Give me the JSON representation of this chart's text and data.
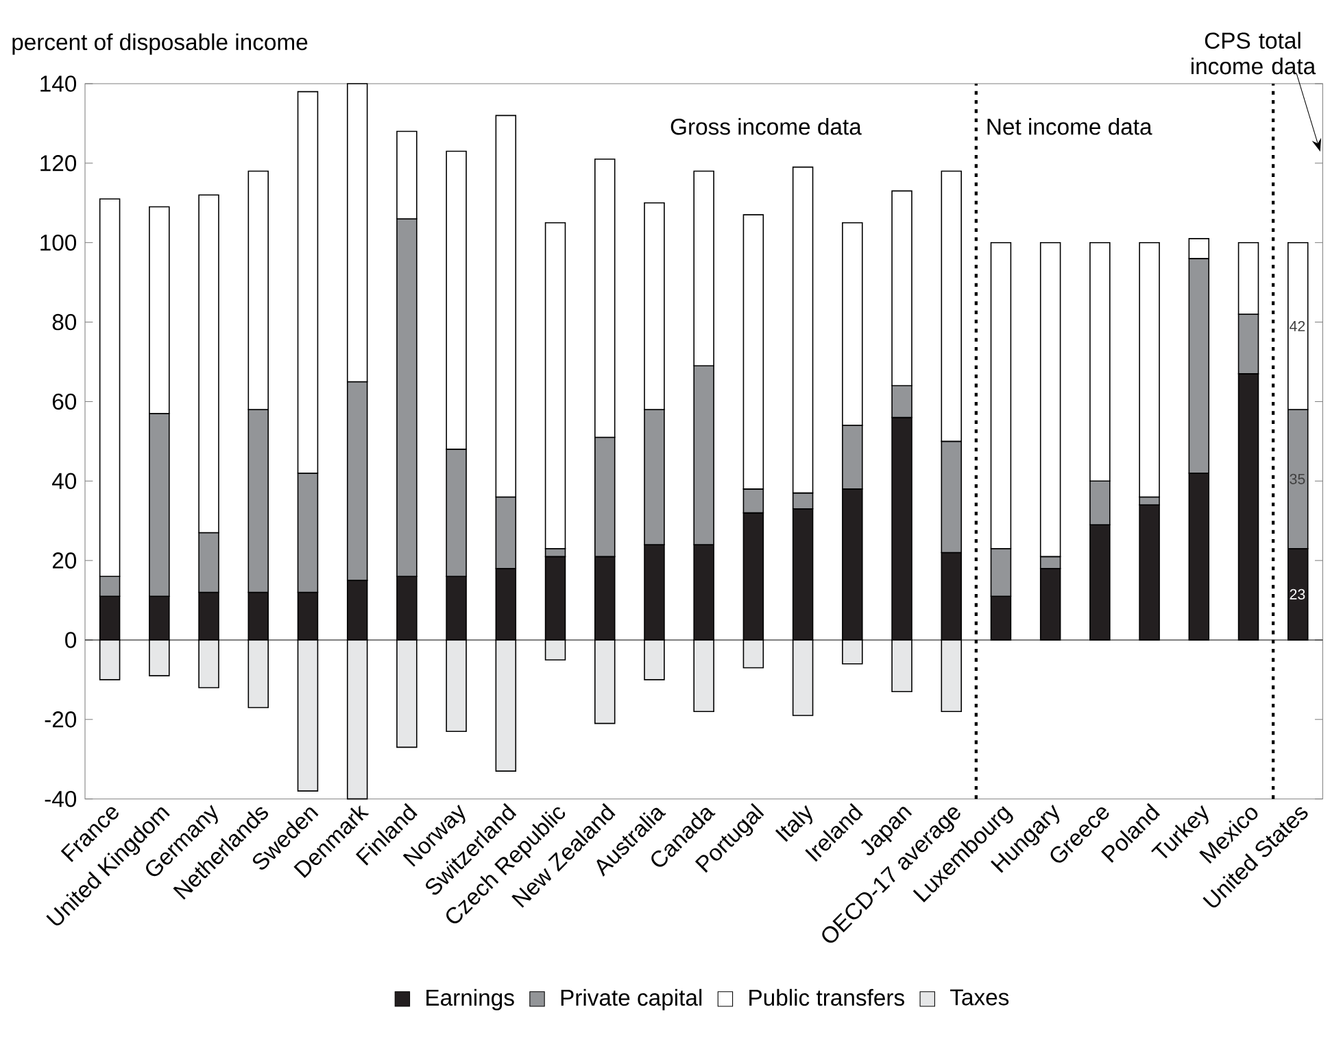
{
  "chart_data": {
    "type": "bar",
    "stacked": true,
    "ylabel": "percent of disposable income",
    "categories": [
      "France",
      "United Kingdom",
      "Germany",
      "Netherlands",
      "Sweden",
      "Denmark",
      "Finland",
      "Norway",
      "Switzerland",
      "Czech Republic",
      "New Zealand",
      "Australia",
      "Canada",
      "Portugal",
      "Italy",
      "Ireland",
      "Japan",
      "OECD-17 average",
      "Luxembourg",
      "Hungary",
      "Greece",
      "Poland",
      "Turkey",
      "Mexico",
      "United States"
    ],
    "series": [
      {
        "name": "Earnings",
        "color": "#231f20",
        "values": [
          11,
          11,
          12,
          12,
          12,
          15,
          16,
          16,
          18,
          21,
          21,
          24,
          24,
          32,
          33,
          38,
          56,
          22,
          11,
          18,
          29,
          34,
          42,
          67,
          23
        ],
        "value_labels": [
          null,
          null,
          null,
          null,
          null,
          null,
          null,
          null,
          null,
          null,
          null,
          null,
          null,
          null,
          null,
          null,
          null,
          null,
          null,
          null,
          null,
          null,
          null,
          null,
          "23"
        ]
      },
      {
        "name": "Private capital",
        "color": "#939598",
        "values": [
          5,
          46,
          15,
          46,
          30,
          50,
          90,
          32,
          18,
          2,
          30,
          34,
          45,
          6,
          4,
          16,
          8,
          28,
          12,
          3,
          11,
          2,
          54,
          15,
          35
        ],
        "value_labels": [
          null,
          null,
          null,
          null,
          null,
          null,
          null,
          null,
          null,
          null,
          null,
          null,
          null,
          null,
          null,
          null,
          null,
          null,
          null,
          null,
          null,
          null,
          null,
          null,
          "35"
        ]
      },
      {
        "name": "Public transfers",
        "color": "#ffffff",
        "values": [
          95,
          52,
          85,
          60,
          96,
          75,
          22,
          75,
          96,
          82,
          70,
          52,
          49,
          69,
          82,
          51,
          49,
          68,
          77,
          79,
          60,
          64,
          5,
          18,
          42
        ],
        "value_labels": [
          null,
          null,
          null,
          null,
          null,
          null,
          null,
          null,
          null,
          null,
          null,
          null,
          null,
          null,
          null,
          null,
          null,
          null,
          null,
          null,
          null,
          null,
          null,
          null,
          "42"
        ]
      },
      {
        "name": "Taxes",
        "color": "#e6e7e8",
        "values": [
          -10,
          -9,
          -12,
          -17,
          -38,
          -40,
          -27,
          -23,
          -33,
          -5,
          -21,
          -10,
          -18,
          -7,
          -19,
          -6,
          -13,
          -18,
          null,
          null,
          null,
          null,
          null,
          null,
          null
        ]
      }
    ],
    "ylim": [
      -40,
      140
    ],
    "yticks": [
      -40,
      -20,
      0,
      20,
      40,
      60,
      80,
      100,
      120,
      140
    ],
    "legend": "bottom",
    "annotations": [
      "Gross income data",
      "Net income data",
      "CPS total income data"
    ]
  }
}
